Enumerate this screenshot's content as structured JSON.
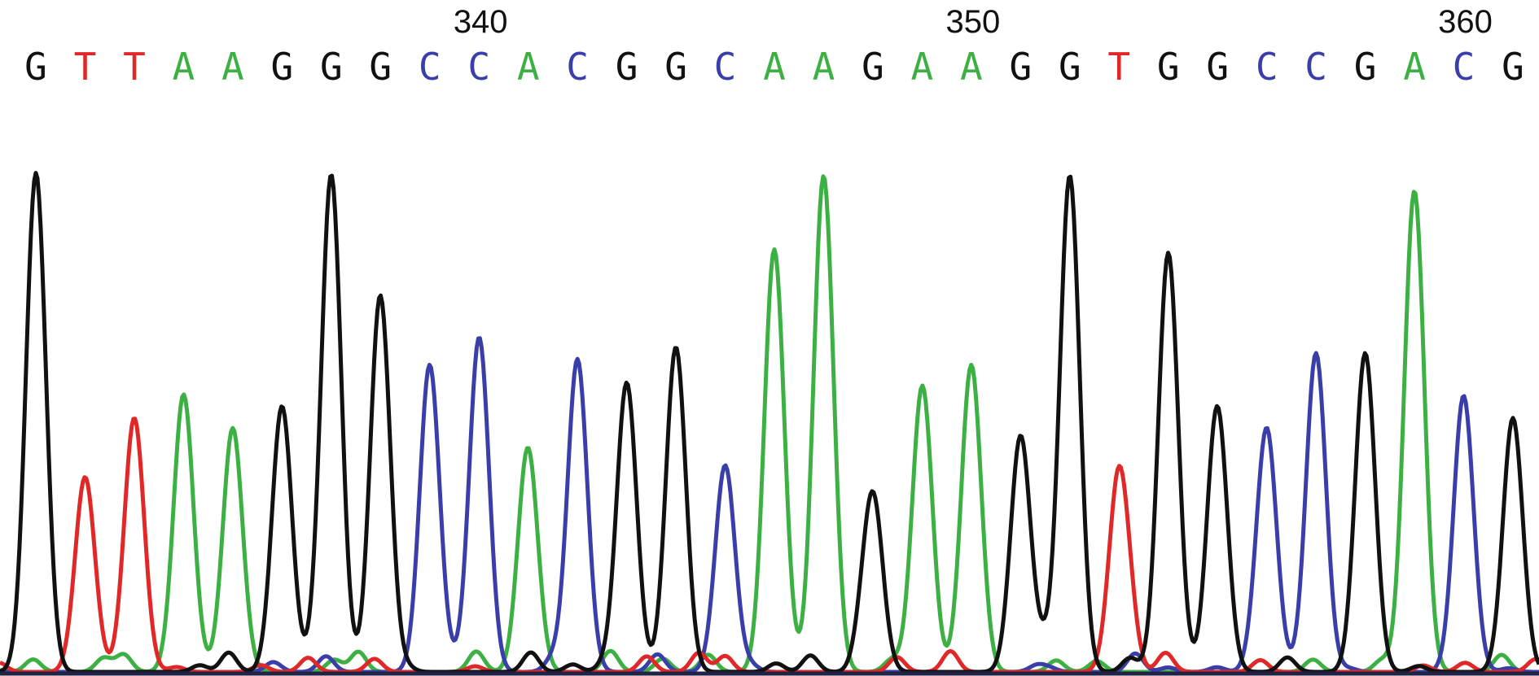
{
  "chart_data": {
    "type": "line",
    "title": "",
    "xlabel": "",
    "ylabel": "",
    "grid": false,
    "legend": "none",
    "position_labels": [
      "340",
      "350",
      "360"
    ],
    "position_label_base_index": [
      9,
      19,
      29
    ],
    "sequence": [
      "G",
      "T",
      "T",
      "A",
      "A",
      "G",
      "G",
      "G",
      "C",
      "C",
      "A",
      "C",
      "G",
      "G",
      "C",
      "A",
      "A",
      "G",
      "A",
      "A",
      "G",
      "G",
      "T",
      "G",
      "G",
      "C",
      "C",
      "G",
      "A",
      "C",
      "G"
    ],
    "peak_heights": [
      0.84,
      0.33,
      0.43,
      0.47,
      0.4,
      0.45,
      0.84,
      0.62,
      0.52,
      0.55,
      0.36,
      0.53,
      0.49,
      0.55,
      0.35,
      0.71,
      0.84,
      0.3,
      0.47,
      0.52,
      0.4,
      0.84,
      0.34,
      0.71,
      0.44,
      0.41,
      0.54,
      0.54,
      0.81,
      0.46,
      0.43
    ],
    "ylim": [
      0,
      1
    ],
    "base_colors": {
      "A": "#3cb043",
      "C": "#3a3ea8",
      "G": "#111111",
      "T": "#e02828"
    },
    "series_order": [
      "A",
      "C",
      "T",
      "G"
    ]
  }
}
